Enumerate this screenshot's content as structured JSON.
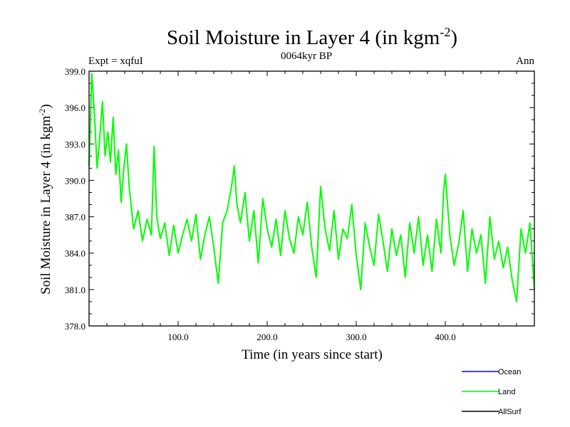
{
  "chart_data": {
    "type": "line",
    "title_main": "Soil Moisture in Layer 4 (in kgm",
    "title_sup": "-2",
    "title_close": ")",
    "subtitle_left": "Expt = xqfuI",
    "subtitle_center": "0064kyr BP",
    "subtitle_right": "Ann",
    "xlabel": "Time (in years since start)",
    "ylabel_main": "Soil Moisture in Layer 4 (in kgm",
    "ylabel_sup": "-2",
    "ylabel_close": ")",
    "xlim": [
      0,
      500
    ],
    "ylim": [
      378,
      399
    ],
    "xticks": [
      100,
      200,
      300,
      400
    ],
    "xtick_labels": [
      "100.0",
      "200.0",
      "300.0",
      "400.0"
    ],
    "yticks": [
      378,
      381,
      384,
      387,
      390,
      393,
      396,
      399
    ],
    "ytick_labels": [
      "378.0",
      "381.0",
      "384.0",
      "387.0",
      "390.0",
      "393.0",
      "396.0",
      "399.0"
    ],
    "legend": [
      {
        "name": "Ocean",
        "color": "#0000ff"
      },
      {
        "name": "Land",
        "color": "#00ff00"
      },
      {
        "name": "AllSurf",
        "color": "#000000"
      }
    ],
    "series": [
      {
        "name": "Land",
        "color": "#00ff00",
        "x": [
          0,
          3,
          6,
          9,
          12,
          15,
          18,
          21,
          24,
          27,
          30,
          33,
          36,
          39,
          42,
          45,
          50,
          55,
          60,
          65,
          70,
          73,
          76,
          80,
          85,
          90,
          95,
          100,
          105,
          110,
          115,
          120,
          125,
          130,
          135,
          140,
          145,
          150,
          155,
          160,
          163,
          166,
          170,
          175,
          180,
          185,
          190,
          195,
          200,
          205,
          210,
          215,
          220,
          225,
          230,
          235,
          240,
          245,
          250,
          255,
          260,
          265,
          270,
          275,
          280,
          285,
          290,
          295,
          300,
          305,
          310,
          315,
          320,
          325,
          330,
          335,
          340,
          345,
          350,
          355,
          360,
          365,
          370,
          375,
          380,
          385,
          390,
          395,
          398,
          400,
          405,
          410,
          415,
          420,
          425,
          430,
          435,
          440,
          445,
          450,
          455,
          460,
          465,
          470,
          475,
          480,
          485,
          490,
          495,
          500
        ],
        "y": [
          391.2,
          398.8,
          395.5,
          391.0,
          393.5,
          396.5,
          392.0,
          394.0,
          391.5,
          395.2,
          390.5,
          392.5,
          388.2,
          391.0,
          393.0,
          389.5,
          386.0,
          387.5,
          385.0,
          386.8,
          385.5,
          392.8,
          387.0,
          385.2,
          386.5,
          383.8,
          386.3,
          384.0,
          385.5,
          386.8,
          385.0,
          387.2,
          383.5,
          385.5,
          387.0,
          384.5,
          381.5,
          386.5,
          387.5,
          389.5,
          391.2,
          388.0,
          386.5,
          389.0,
          385.0,
          387.5,
          383.2,
          388.5,
          386.0,
          384.5,
          386.8,
          383.8,
          387.5,
          385.2,
          384.0,
          387.0,
          385.5,
          388.2,
          384.5,
          382.0,
          389.5,
          386.0,
          384.2,
          387.5,
          383.5,
          386.0,
          385.2,
          388.0,
          383.8,
          381.0,
          386.5,
          384.5,
          383.0,
          387.2,
          385.0,
          382.5,
          386.0,
          383.8,
          385.5,
          382.0,
          386.5,
          384.0,
          387.0,
          383.0,
          385.5,
          382.5,
          386.8,
          384.0,
          389.0,
          390.5,
          385.5,
          383.0,
          384.8,
          387.5,
          382.5,
          386.0,
          384.0,
          385.5,
          381.5,
          387.0,
          383.5,
          385.0,
          382.8,
          384.5,
          381.8,
          380.0,
          386.0,
          384.0,
          386.5,
          381.0
        ]
      }
    ]
  }
}
